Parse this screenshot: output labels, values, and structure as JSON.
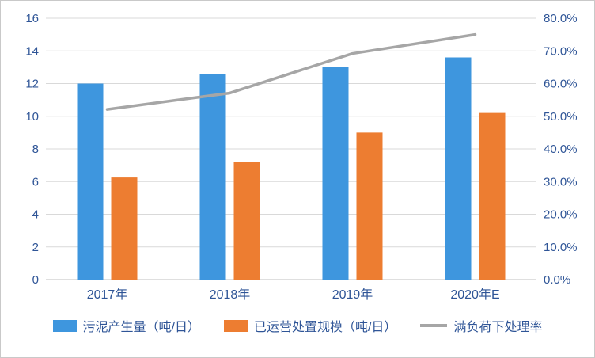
{
  "chart_data": {
    "type": "bar",
    "subtype": "bar+line-combo",
    "title": "",
    "categories": [
      "2017年",
      "2018年",
      "2019年",
      "2020年E"
    ],
    "series": [
      {
        "name": "污泥产生量（吨/日）",
        "kind": "bar",
        "axis": "left",
        "color": "#3E96DE",
        "values": [
          12,
          12.6,
          13,
          13.6
        ]
      },
      {
        "name": "已运营处置规模（吨/日）",
        "kind": "bar",
        "axis": "left",
        "color": "#ED7D31",
        "values": [
          6.25,
          7.2,
          9,
          10.2
        ]
      },
      {
        "name": "满负荷下处理率",
        "kind": "line",
        "axis": "right",
        "color": "#A6A6A6",
        "values_pct": [
          52.1,
          57.1,
          69.2,
          75.0
        ]
      }
    ],
    "left_axis": {
      "min": 0,
      "max": 16,
      "step": 2,
      "ticks": [
        "0",
        "2",
        "4",
        "6",
        "8",
        "10",
        "12",
        "14",
        "16"
      ]
    },
    "right_axis": {
      "min": 0,
      "max": 80,
      "step": 10,
      "ticks": [
        "0.0%",
        "10.0%",
        "20.0%",
        "30.0%",
        "40.0%",
        "50.0%",
        "60.0%",
        "70.0%",
        "80.0%"
      ]
    },
    "grid": true,
    "legend_position": "bottom",
    "colors": {
      "text": "#2F5597",
      "gridline": "#D9D9D9",
      "axis_line": "#BFBFBF"
    }
  }
}
